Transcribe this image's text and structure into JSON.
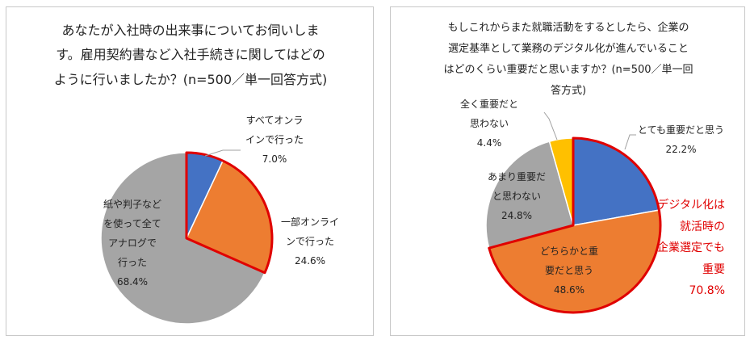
{
  "chart_data": [
    {
      "type": "pie",
      "title": "あなたが入社時の出来事についてお伺いします。雇用契約書など入社手続きに関してはどのように行いましたか？(n=500／単一回答方式)",
      "title_lines": [
        "あなたが入社時の出来事についてお伺いしま",
        "す。雇用契約書など入社手続きに関してはどの",
        "ように行いましたか？(n=500／単一回答方式)"
      ],
      "categories": [
        "すべてオンラインで行った",
        "一部オンラインで行った",
        "紙や判子などを使って全てアナログで行った"
      ],
      "values": [
        7.0,
        24.6,
        68.4
      ],
      "colors": [
        "#4472c4",
        "#ed7d31",
        "#a5a5a5"
      ],
      "labels": [
        {
          "lines": [
            "すべてオンラ",
            "インで行った",
            "7.0%"
          ]
        },
        {
          "lines": [
            "一部オンライ",
            "ンで行った",
            "24.6%"
          ]
        },
        {
          "lines": [
            "紙や判子など",
            "を使って全て",
            "アナログで",
            "行った",
            "68.4%"
          ]
        }
      ],
      "highlight": {
        "slices": [
          0,
          1
        ],
        "color": "#e00000"
      }
    },
    {
      "type": "pie",
      "title": "もしこれからまた就職活動をするとしたら、企業の選定基準として業務のデジタル化が進んでいることはどのくらい重要だと思いますか？(n=500／単一回答方式)",
      "title_lines": [
        "もしこれからまた就職活動をするとしたら、企業の",
        "選定基準として業務のデジタル化が進んでいること",
        "はどのくらい重要だと思いますか？(n=500／単一回",
        "答方式)"
      ],
      "categories": [
        "とても重要だと思う",
        "どちらかと重要だと思う",
        "あまり重要だと思わない",
        "全く重要だと思わない"
      ],
      "values": [
        22.2,
        48.6,
        24.8,
        4.4
      ],
      "colors": [
        "#4472c4",
        "#ed7d31",
        "#a5a5a5",
        "#ffc000"
      ],
      "labels": [
        {
          "lines": [
            "とても重要だと思う",
            "22.2%"
          ]
        },
        {
          "lines": [
            "どちらかと重",
            "要だと思う",
            "48.6%"
          ]
        },
        {
          "lines": [
            "あまり重要だ",
            "と思わない",
            "24.8%"
          ]
        },
        {
          "lines": [
            "全く重要だと",
            "思わない",
            "4.4%"
          ]
        }
      ],
      "highlight": {
        "slices": [
          0,
          1
        ],
        "color": "#e00000"
      },
      "annotation": {
        "lines": [
          "デジタル化は",
          "就活時の",
          "企業選定でも",
          "重要",
          "70.8%"
        ],
        "color": "#e00000"
      }
    }
  ]
}
